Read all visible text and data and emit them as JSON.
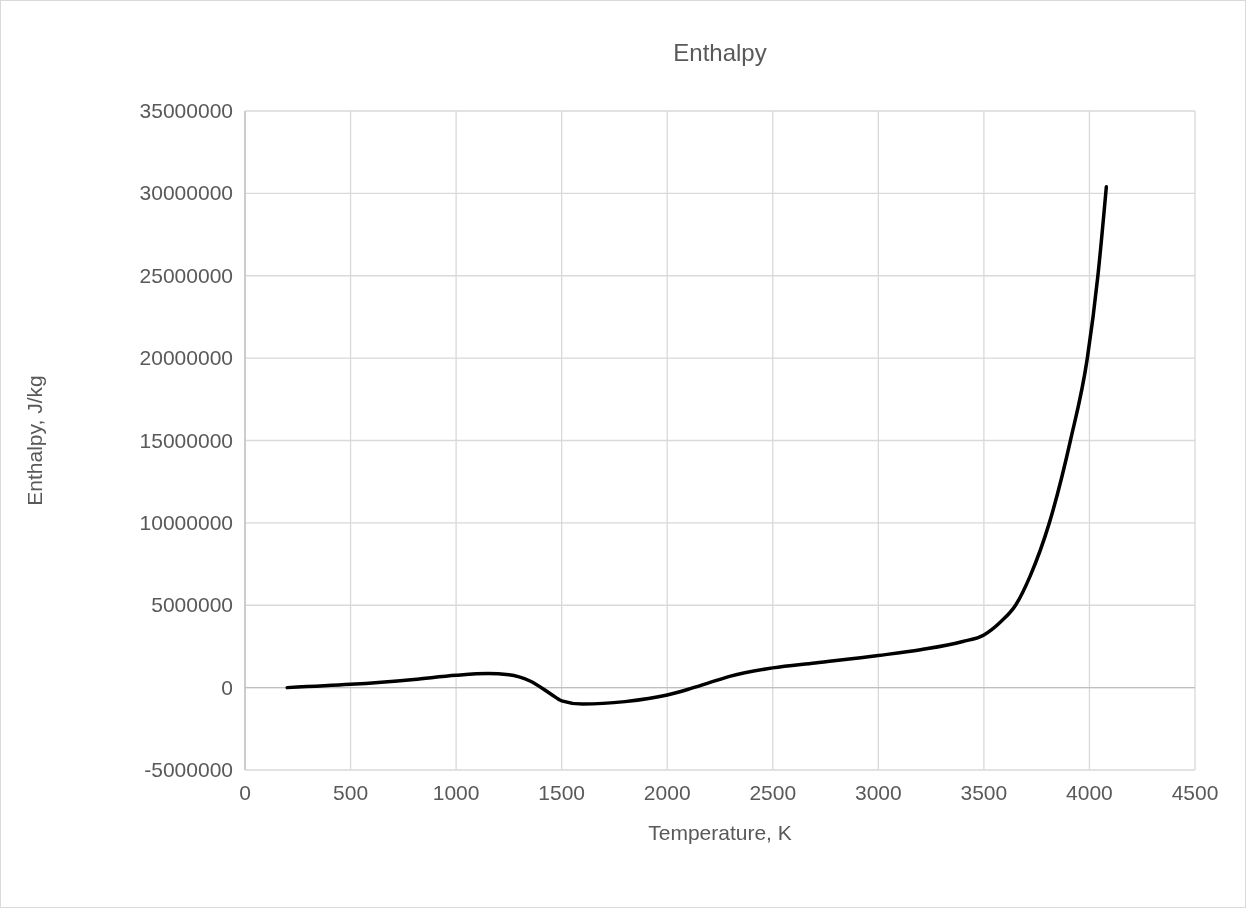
{
  "chart_data": {
    "type": "line",
    "title": "Enthalpy",
    "xlabel": "Temperature, K",
    "ylabel": "Enthalpy, J/kg",
    "series": [
      {
        "color": "#000000",
        "x": [
          200,
          500,
          800,
          1000,
          1150,
          1250,
          1350,
          1450,
          1500,
          1600,
          1800,
          2000,
          2100,
          2200,
          2300,
          2500,
          2700,
          3000,
          3200,
          3400,
          3500,
          3580,
          3650,
          3720,
          3810,
          3910,
          3990,
          4040,
          4080
        ],
        "values": [
          0,
          200000,
          500000,
          750000,
          850000,
          780000,
          400000,
          -400000,
          -800000,
          -1000000,
          -850000,
          -450000,
          -100000,
          300000,
          700000,
          1200000,
          1500000,
          1950000,
          2300000,
          2800000,
          3200000,
          4000000,
          5000000,
          6800000,
          10000000,
          15000000,
          20000000,
          25000000,
          30400000
        ]
      }
    ],
    "xlim": [
      0,
      4500
    ],
    "xticks": [
      0,
      500,
      1000,
      1500,
      2000,
      2500,
      3000,
      3500,
      4000,
      4500
    ],
    "ylim": [
      -5000000,
      35000000
    ],
    "yticks": [
      -5000000,
      0,
      5000000,
      10000000,
      15000000,
      20000000,
      25000000,
      30000000,
      35000000
    ],
    "grid": true,
    "marker": "none",
    "line_style": "solid"
  }
}
